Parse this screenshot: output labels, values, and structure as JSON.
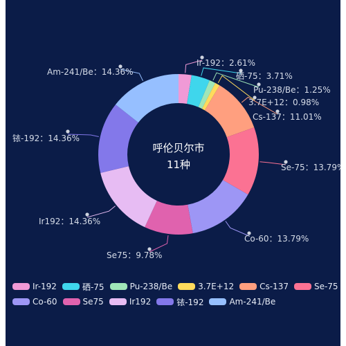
{
  "chart_data": {
    "type": "pie",
    "donut": true,
    "title": "呼伦贝尔市",
    "subtitle": "11种",
    "label_separator": "：",
    "colors": {
      "background": "#0b1c48",
      "label": "#d6dce8"
    },
    "slices": [
      {
        "name": "Ir-192",
        "value": 2.61,
        "label": "2.61%",
        "color": "#f09ad6"
      },
      {
        "name": "硒-75",
        "value": 3.71,
        "label": "3.71%",
        "color": "#3fd6ec"
      },
      {
        "name": "Pu-238/Be",
        "value": 1.25,
        "label": "1.25%",
        "color": "#9fe6b8"
      },
      {
        "name": "3.7E+12",
        "value": 0.98,
        "label": "0.98%",
        "color": "#ffdb5c"
      },
      {
        "name": "Cs-137",
        "value": 11.01,
        "label": "11.01%",
        "color": "#ff9f7f"
      },
      {
        "name": "Se-75",
        "value": 13.79,
        "label": "13.79%",
        "color": "#fb7293"
      },
      {
        "name": "Co-60",
        "value": 13.79,
        "label": "13.79%",
        "color": "#9d96f5"
      },
      {
        "name": "Se75",
        "value": 9.78,
        "label": "9.78%",
        "color": "#e062ae"
      },
      {
        "name": "Ir192",
        "value": 14.36,
        "label": "14.36%",
        "color": "#e7bcf3"
      },
      {
        "name": "铱-192",
        "value": 14.36,
        "label": "14.36%",
        "color": "#8378ea"
      },
      {
        "name": "Am-241/Be",
        "value": 14.36,
        "label": "14.36%",
        "color": "#96bfff"
      }
    ]
  }
}
